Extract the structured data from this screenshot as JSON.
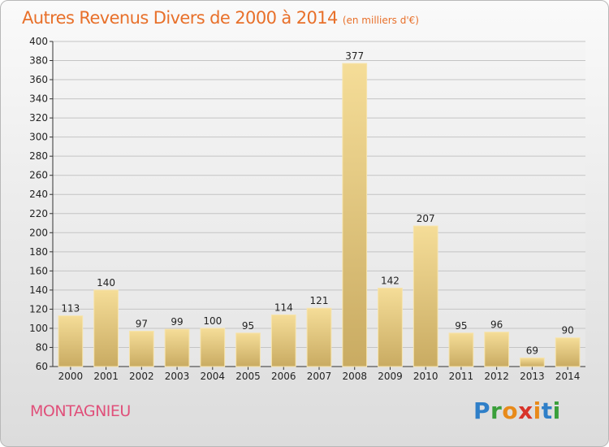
{
  "header": {
    "title": "Autres Revenus Divers de 2000 à 2014",
    "subtitle": "(en milliers d'€)"
  },
  "footer": {
    "city": "MONTAGNIEU",
    "logo_letters": [
      "P",
      "r",
      "o",
      "x",
      "i",
      "t",
      "i"
    ],
    "logo_colors": [
      "#2f7fc8",
      "#3a9f3a",
      "#e88a1a",
      "#d8332a",
      "#e88a1a",
      "#2f7fc8",
      "#3a9f3a"
    ]
  },
  "chart_data": {
    "type": "bar",
    "categories": [
      "2000",
      "2001",
      "2002",
      "2003",
      "2004",
      "2005",
      "2006",
      "2007",
      "2008",
      "2009",
      "2010",
      "2011",
      "2012",
      "2013",
      "2014"
    ],
    "values": [
      113,
      140,
      97,
      99,
      100,
      95,
      114,
      121,
      377,
      142,
      207,
      95,
      96,
      69,
      90
    ],
    "ylim": [
      60,
      400
    ],
    "yticks": [
      60,
      80,
      100,
      120,
      140,
      160,
      180,
      200,
      220,
      240,
      260,
      280,
      300,
      320,
      340,
      360,
      380,
      400
    ],
    "grid": true,
    "bar_color": "#e8cc82"
  }
}
